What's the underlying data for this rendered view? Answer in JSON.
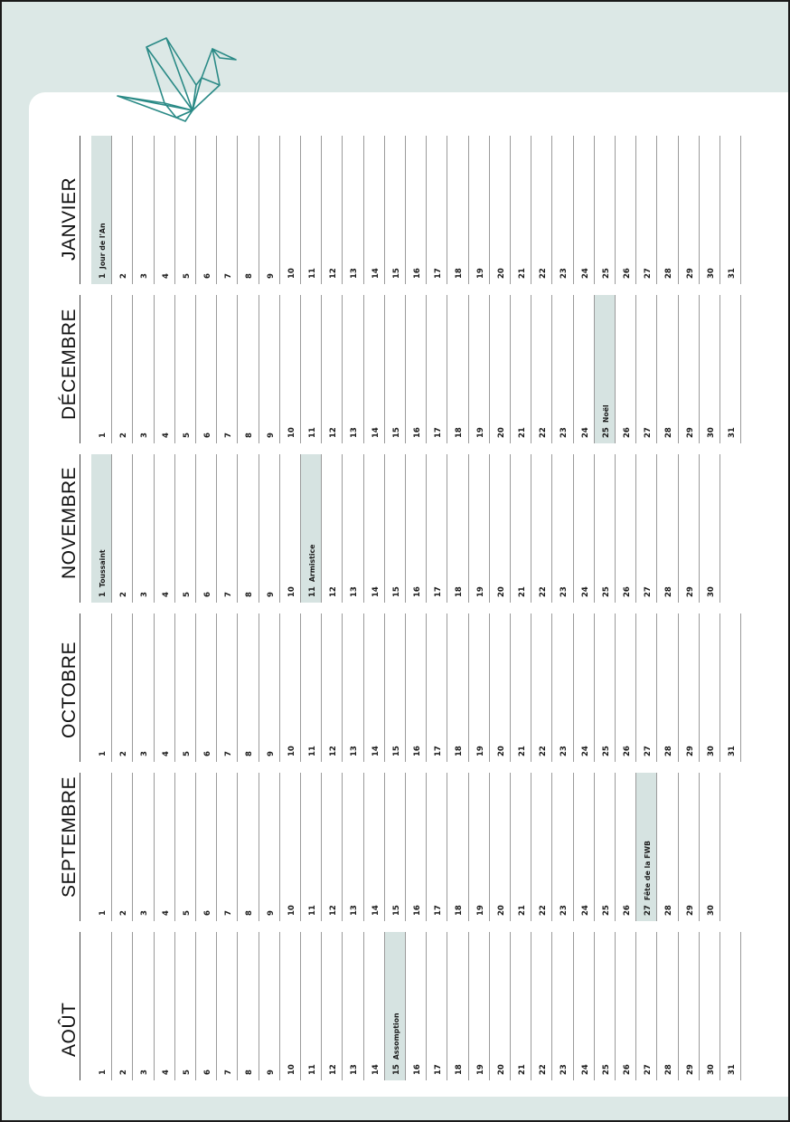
{
  "colors": {
    "background": "#dce8e6",
    "holiday": "#d6e3e1",
    "accent": "#2a8a86"
  },
  "decoration": {
    "icon": "origami-crane-icon"
  },
  "months": [
    {
      "name": "AOÛT",
      "days": 31,
      "holidays": [
        {
          "day": 15,
          "label": "Assomption"
        }
      ]
    },
    {
      "name": "SEPTEMBRE",
      "days": 30,
      "holidays": [
        {
          "day": 27,
          "label": "Fête de la FWB"
        }
      ]
    },
    {
      "name": "OCTOBRE",
      "days": 31,
      "holidays": []
    },
    {
      "name": "NOVEMBRE",
      "days": 30,
      "holidays": [
        {
          "day": 1,
          "label": "Toussaint"
        },
        {
          "day": 11,
          "label": "Armistice"
        }
      ]
    },
    {
      "name": "DÉCEMBRE",
      "days": 31,
      "holidays": [
        {
          "day": 25,
          "label": "Noël"
        }
      ]
    },
    {
      "name": "JANVIER",
      "days": 31,
      "holidays": [
        {
          "day": 1,
          "label": "Jour de l'An"
        }
      ]
    }
  ]
}
